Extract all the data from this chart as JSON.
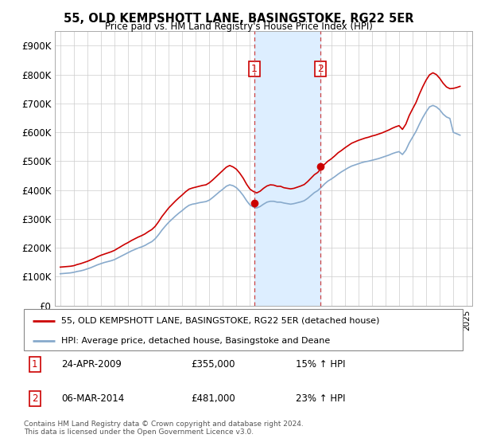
{
  "title": "55, OLD KEMPSHOTT LANE, BASINGSTOKE, RG22 5ER",
  "subtitle": "Price paid vs. HM Land Registry's House Price Index (HPI)",
  "legend_label_red": "55, OLD KEMPSHOTT LANE, BASINGSTOKE, RG22 5ER (detached house)",
  "legend_label_blue": "HPI: Average price, detached house, Basingstoke and Deane",
  "footer1": "Contains HM Land Registry data © Crown copyright and database right 2024.",
  "footer2": "This data is licensed under the Open Government Licence v3.0.",
  "sale1_label": "1",
  "sale1_date": "24-APR-2009",
  "sale1_price": "£355,000",
  "sale1_hpi": "15% ↑ HPI",
  "sale1_year": 2009.3,
  "sale1_value": 355000,
  "sale2_label": "2",
  "sale2_date": "06-MAR-2014",
  "sale2_price": "£481,000",
  "sale2_hpi": "23% ↑ HPI",
  "sale2_year": 2014.18,
  "sale2_value": 481000,
  "red_color": "#cc0000",
  "blue_color": "#88aacc",
  "shade_color": "#ddeeff",
  "vline_color": "#cc4444",
  "marker_box_color": "#cc0000",
  "ylim": [
    0,
    950000
  ],
  "yticks": [
    0,
    100000,
    200000,
    300000,
    400000,
    500000,
    600000,
    700000,
    800000,
    900000
  ],
  "ytick_labels": [
    "£0",
    "£100K",
    "£200K",
    "£300K",
    "£400K",
    "£500K",
    "£600K",
    "£700K",
    "£800K",
    "£900K"
  ],
  "hpi_data": {
    "years": [
      1995.0,
      1995.25,
      1995.5,
      1995.75,
      1996.0,
      1996.25,
      1996.5,
      1996.75,
      1997.0,
      1997.25,
      1997.5,
      1997.75,
      1998.0,
      1998.25,
      1998.5,
      1998.75,
      1999.0,
      1999.25,
      1999.5,
      1999.75,
      2000.0,
      2000.25,
      2000.5,
      2000.75,
      2001.0,
      2001.25,
      2001.5,
      2001.75,
      2002.0,
      2002.25,
      2002.5,
      2002.75,
      2003.0,
      2003.25,
      2003.5,
      2003.75,
      2004.0,
      2004.25,
      2004.5,
      2004.75,
      2005.0,
      2005.25,
      2005.5,
      2005.75,
      2006.0,
      2006.25,
      2006.5,
      2006.75,
      2007.0,
      2007.25,
      2007.5,
      2007.75,
      2008.0,
      2008.25,
      2008.5,
      2008.75,
      2009.0,
      2009.25,
      2009.5,
      2009.75,
      2010.0,
      2010.25,
      2010.5,
      2010.75,
      2011.0,
      2011.25,
      2011.5,
      2011.75,
      2012.0,
      2012.25,
      2012.5,
      2012.75,
      2013.0,
      2013.25,
      2013.5,
      2013.75,
      2014.0,
      2014.25,
      2014.5,
      2014.75,
      2015.0,
      2015.25,
      2015.5,
      2015.75,
      2016.0,
      2016.25,
      2016.5,
      2016.75,
      2017.0,
      2017.25,
      2017.5,
      2017.75,
      2018.0,
      2018.25,
      2018.5,
      2018.75,
      2019.0,
      2019.25,
      2019.5,
      2019.75,
      2020.0,
      2020.25,
      2020.5,
      2020.75,
      2021.0,
      2021.25,
      2021.5,
      2021.75,
      2022.0,
      2022.25,
      2022.5,
      2022.75,
      2023.0,
      2023.25,
      2023.5,
      2023.75,
      2024.0,
      2024.25,
      2024.5
    ],
    "values": [
      110000,
      111000,
      112000,
      113000,
      115000,
      118000,
      120000,
      123000,
      127000,
      131000,
      136000,
      141000,
      145000,
      149000,
      152000,
      155000,
      159000,
      165000,
      171000,
      177000,
      183000,
      189000,
      194000,
      199000,
      203000,
      208000,
      215000,
      221000,
      231000,
      245000,
      261000,
      275000,
      288000,
      299000,
      310000,
      320000,
      329000,
      339000,
      347000,
      351000,
      353000,
      356000,
      358000,
      360000,
      365000,
      374000,
      384000,
      394000,
      403000,
      413000,
      418000,
      415000,
      408000,
      396000,
      381000,
      363000,
      348000,
      341000,
      338000,
      343000,
      351000,
      358000,
      361000,
      361000,
      358000,
      358000,
      355000,
      353000,
      351000,
      353000,
      356000,
      359000,
      363000,
      371000,
      381000,
      391000,
      398000,
      409000,
      421000,
      431000,
      438000,
      446000,
      455000,
      463000,
      470000,
      477000,
      483000,
      487000,
      491000,
      495000,
      498000,
      500000,
      503000,
      506000,
      509000,
      513000,
      517000,
      521000,
      526000,
      530000,
      533000,
      523000,
      538000,
      563000,
      583000,
      603000,
      628000,
      651000,
      671000,
      688000,
      693000,
      688000,
      678000,
      663000,
      653000,
      648000,
      600000,
      595000,
      590000
    ]
  },
  "red_data": {
    "years": [
      1995.0,
      1995.25,
      1995.5,
      1995.75,
      1996.0,
      1996.25,
      1996.5,
      1996.75,
      1997.0,
      1997.25,
      1997.5,
      1997.75,
      1998.0,
      1998.25,
      1998.5,
      1998.75,
      1999.0,
      1999.25,
      1999.5,
      1999.75,
      2000.0,
      2000.25,
      2000.5,
      2000.75,
      2001.0,
      2001.25,
      2001.5,
      2001.75,
      2002.0,
      2002.25,
      2002.5,
      2002.75,
      2003.0,
      2003.25,
      2003.5,
      2003.75,
      2004.0,
      2004.25,
      2004.5,
      2004.75,
      2005.0,
      2005.25,
      2005.5,
      2005.75,
      2006.0,
      2006.25,
      2006.5,
      2006.75,
      2007.0,
      2007.25,
      2007.5,
      2007.75,
      2008.0,
      2008.25,
      2008.5,
      2008.75,
      2009.0,
      2009.25,
      2009.5,
      2009.75,
      2010.0,
      2010.25,
      2010.5,
      2010.75,
      2011.0,
      2011.25,
      2011.5,
      2011.75,
      2012.0,
      2012.25,
      2012.5,
      2012.75,
      2013.0,
      2013.25,
      2013.5,
      2013.75,
      2014.0,
      2014.25,
      2014.5,
      2014.75,
      2015.0,
      2015.25,
      2015.5,
      2015.75,
      2016.0,
      2016.25,
      2016.5,
      2016.75,
      2017.0,
      2017.25,
      2017.5,
      2017.75,
      2018.0,
      2018.25,
      2018.5,
      2018.75,
      2019.0,
      2019.25,
      2019.5,
      2019.75,
      2020.0,
      2020.25,
      2020.5,
      2020.75,
      2021.0,
      2021.25,
      2021.5,
      2021.75,
      2022.0,
      2022.25,
      2022.5,
      2022.75,
      2023.0,
      2023.25,
      2023.5,
      2023.75,
      2024.0,
      2024.25,
      2024.5
    ],
    "values": [
      133000,
      134000,
      135000,
      136000,
      138000,
      142000,
      145000,
      149000,
      153000,
      158000,
      163000,
      169000,
      174000,
      178000,
      182000,
      186000,
      191000,
      198000,
      205000,
      212000,
      218000,
      225000,
      231000,
      237000,
      242000,
      248000,
      256000,
      263000,
      274000,
      290000,
      308000,
      323000,
      338000,
      350000,
      362000,
      373000,
      383000,
      394000,
      403000,
      407000,
      410000,
      413000,
      416000,
      418000,
      425000,
      435000,
      446000,
      457000,
      468000,
      479000,
      485000,
      480000,
      472000,
      458000,
      441000,
      420000,
      403000,
      395000,
      390000,
      396000,
      406000,
      414000,
      418000,
      417000,
      413000,
      413000,
      408000,
      406000,
      404000,
      406000,
      410000,
      414000,
      419000,
      429000,
      441000,
      453000,
      461000,
      475000,
      489000,
      500000,
      508000,
      518000,
      529000,
      537000,
      546000,
      554000,
      562000,
      567000,
      572000,
      576000,
      580000,
      583000,
      587000,
      590000,
      594000,
      598000,
      603000,
      608000,
      614000,
      619000,
      623000,
      610000,
      628000,
      658000,
      681000,
      703000,
      732000,
      758000,
      781000,
      799000,
      806000,
      800000,
      787000,
      770000,
      757000,
      751000,
      752000,
      755000,
      759000
    ]
  }
}
